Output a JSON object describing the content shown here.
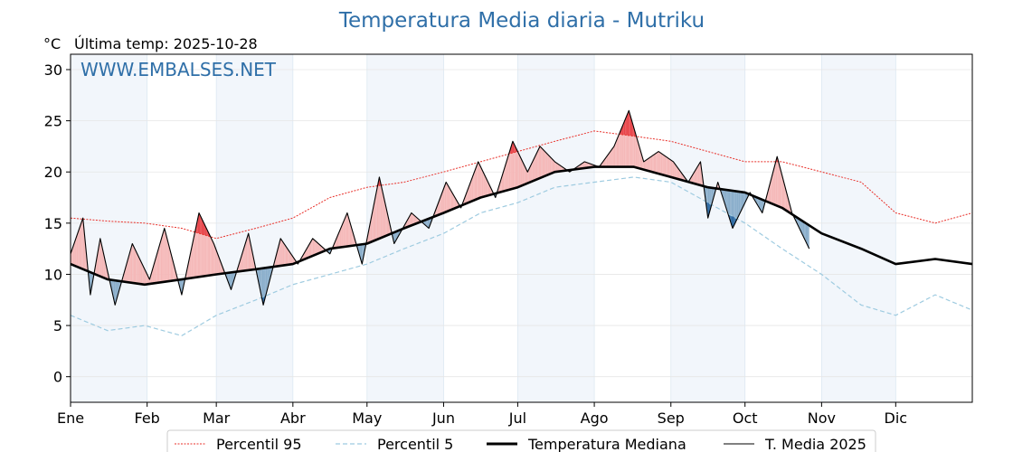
{
  "chart_data": {
    "type": "line",
    "title": "Temperatura Media diaria - Mutriku",
    "unit": "°C",
    "last_temp": "Última temp: 2025-10-28",
    "watermark": "WWW.EMBALSES.NET",
    "xlim": [
      0,
      365
    ],
    "ylim": [
      -2.5,
      31.5
    ],
    "yticks": [
      0,
      5,
      10,
      15,
      20,
      25,
      30
    ],
    "grid": true,
    "legend_position": "bottom-center",
    "months": [
      "Ene",
      "Feb",
      "Mar",
      "Abr",
      "May",
      "Jun",
      "Jul",
      "Ago",
      "Sep",
      "Oct",
      "Nov",
      "Dic"
    ],
    "month_start_day": [
      0,
      31,
      59,
      90,
      120,
      151,
      181,
      212,
      243,
      273,
      304,
      334
    ],
    "colors": {
      "p95": "#e8302a",
      "p5": "#9ecbe0",
      "median": "#000000",
      "current": "#000000",
      "above_fill": "#f5b8b8",
      "above_fill_extreme": "#e8454a",
      "below_fill": "#8aaecb",
      "below_fill_extreme": "#2e6aa3",
      "band": "#f2f6fb"
    },
    "series": [
      {
        "name": "Percentil 95",
        "style": "dotted-red",
        "x": [
          0,
          15,
          30,
          45,
          59,
          75,
          90,
          105,
          120,
          135,
          151,
          166,
          181,
          196,
          212,
          228,
          243,
          258,
          273,
          288,
          304,
          320,
          334,
          350,
          365
        ],
        "y": [
          15.5,
          15.2,
          15.0,
          14.5,
          13.5,
          14.5,
          15.5,
          17.5,
          18.5,
          19.0,
          20.0,
          21.0,
          22.0,
          23.0,
          24.0,
          23.5,
          23.0,
          22.0,
          21.0,
          21.0,
          20.0,
          19.0,
          16.0,
          15.0,
          16.0
        ]
      },
      {
        "name": "Percentil 5",
        "style": "dashed-lightblue",
        "x": [
          0,
          15,
          30,
          45,
          59,
          75,
          90,
          105,
          120,
          135,
          151,
          166,
          181,
          196,
          212,
          228,
          243,
          258,
          273,
          288,
          304,
          320,
          334,
          350,
          365
        ],
        "y": [
          6.0,
          4.5,
          5.0,
          4.0,
          6.0,
          7.5,
          9.0,
          10.0,
          11.0,
          12.5,
          14.0,
          16.0,
          17.0,
          18.5,
          19.0,
          19.5,
          19.0,
          17.0,
          15.0,
          12.5,
          10.0,
          7.0,
          6.0,
          8.0,
          6.5
        ]
      },
      {
        "name": "Temperatura Mediana",
        "style": "thick-black",
        "x": [
          0,
          15,
          30,
          45,
          59,
          75,
          90,
          105,
          120,
          135,
          151,
          166,
          181,
          196,
          212,
          228,
          243,
          258,
          273,
          288,
          304,
          320,
          334,
          350,
          365
        ],
        "y": [
          11.0,
          9.5,
          9.0,
          9.5,
          10.0,
          10.5,
          11.0,
          12.5,
          13.0,
          14.5,
          16.0,
          17.5,
          18.5,
          20.0,
          20.5,
          20.5,
          19.5,
          18.5,
          18.0,
          16.5,
          14.0,
          12.5,
          11.0,
          11.5,
          11.0
        ]
      },
      {
        "name": "T. Media 2025",
        "style": "thin-black",
        "x": [
          0,
          5,
          8,
          12,
          18,
          25,
          32,
          38,
          45,
          52,
          58,
          65,
          72,
          78,
          85,
          92,
          98,
          105,
          112,
          118,
          125,
          131,
          138,
          145,
          152,
          158,
          165,
          172,
          179,
          185,
          190,
          196,
          202,
          208,
          214,
          220,
          226,
          232,
          238,
          244,
          250,
          255,
          258,
          262,
          268,
          275,
          280,
          286,
          292,
          299
        ],
        "y": [
          12.0,
          15.5,
          8.0,
          13.5,
          7.0,
          13.0,
          9.5,
          14.5,
          8.0,
          16.0,
          13.0,
          8.5,
          14.0,
          7.0,
          13.5,
          11.0,
          13.5,
          12.0,
          16.0,
          11.0,
          19.5,
          13.0,
          16.0,
          14.5,
          19.0,
          16.5,
          21.0,
          17.5,
          23.0,
          20.0,
          22.5,
          21.0,
          20.0,
          21.0,
          20.5,
          22.5,
          26.0,
          21.0,
          22.0,
          21.0,
          19.0,
          21.0,
          15.5,
          19.0,
          14.5,
          18.0,
          16.0,
          21.5,
          16.0,
          12.5
        ]
      }
    ]
  }
}
